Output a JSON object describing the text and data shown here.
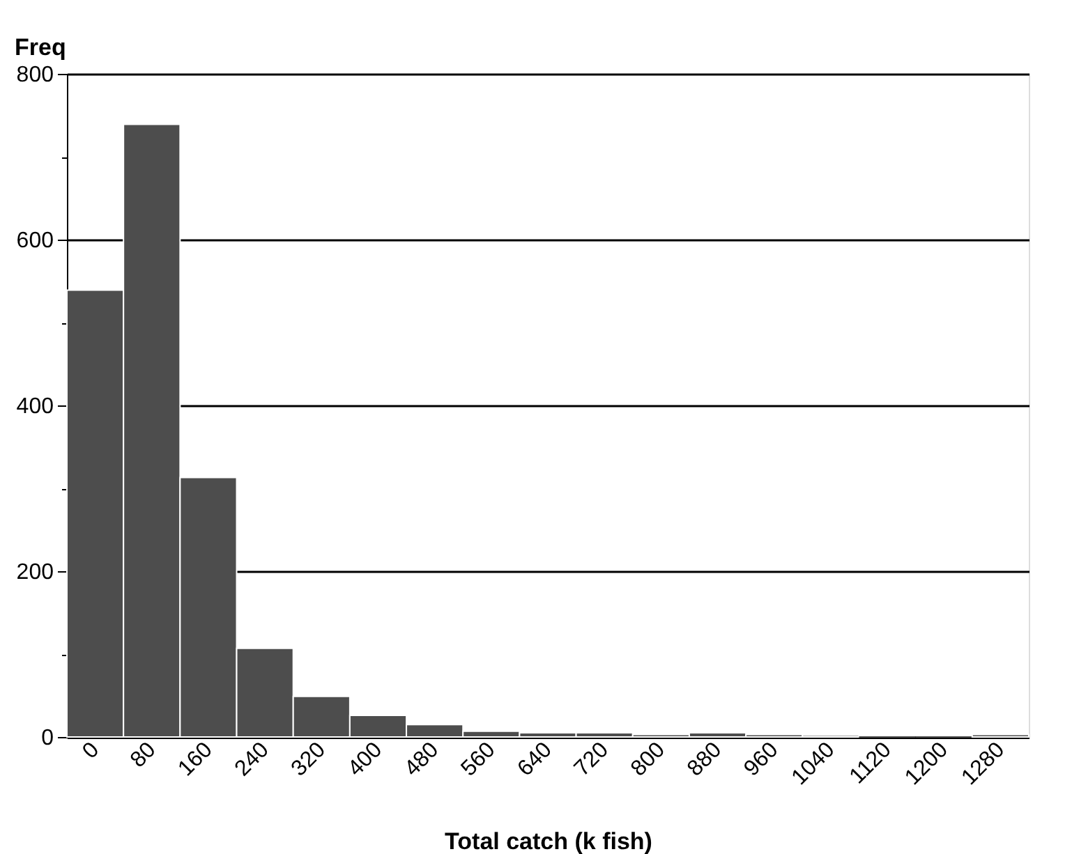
{
  "chart_data": {
    "type": "bar",
    "xlabel": "Total catch (k fish)",
    "ylabel": "Freq",
    "categories": [
      "0",
      "80",
      "160",
      "240",
      "320",
      "400",
      "480",
      "560",
      "640",
      "720",
      "800",
      "880",
      "960",
      "1040",
      "1120",
      "1200",
      "1280"
    ],
    "values": [
      539,
      739,
      313,
      107,
      49,
      26,
      15,
      7,
      5,
      5,
      3,
      5,
      3,
      2,
      0,
      0,
      3
    ],
    "color": "#4d4d4d",
    "ylim": [
      0,
      800
    ],
    "yticks": [
      0,
      {
        "value": 100,
        "label": null
      },
      200,
      {
        "value": 300,
        "label": null
      },
      400,
      {
        "value": 500,
        "label": null
      },
      600,
      {
        "value": 700,
        "label": null
      },
      800
    ],
    "grid": "y"
  }
}
